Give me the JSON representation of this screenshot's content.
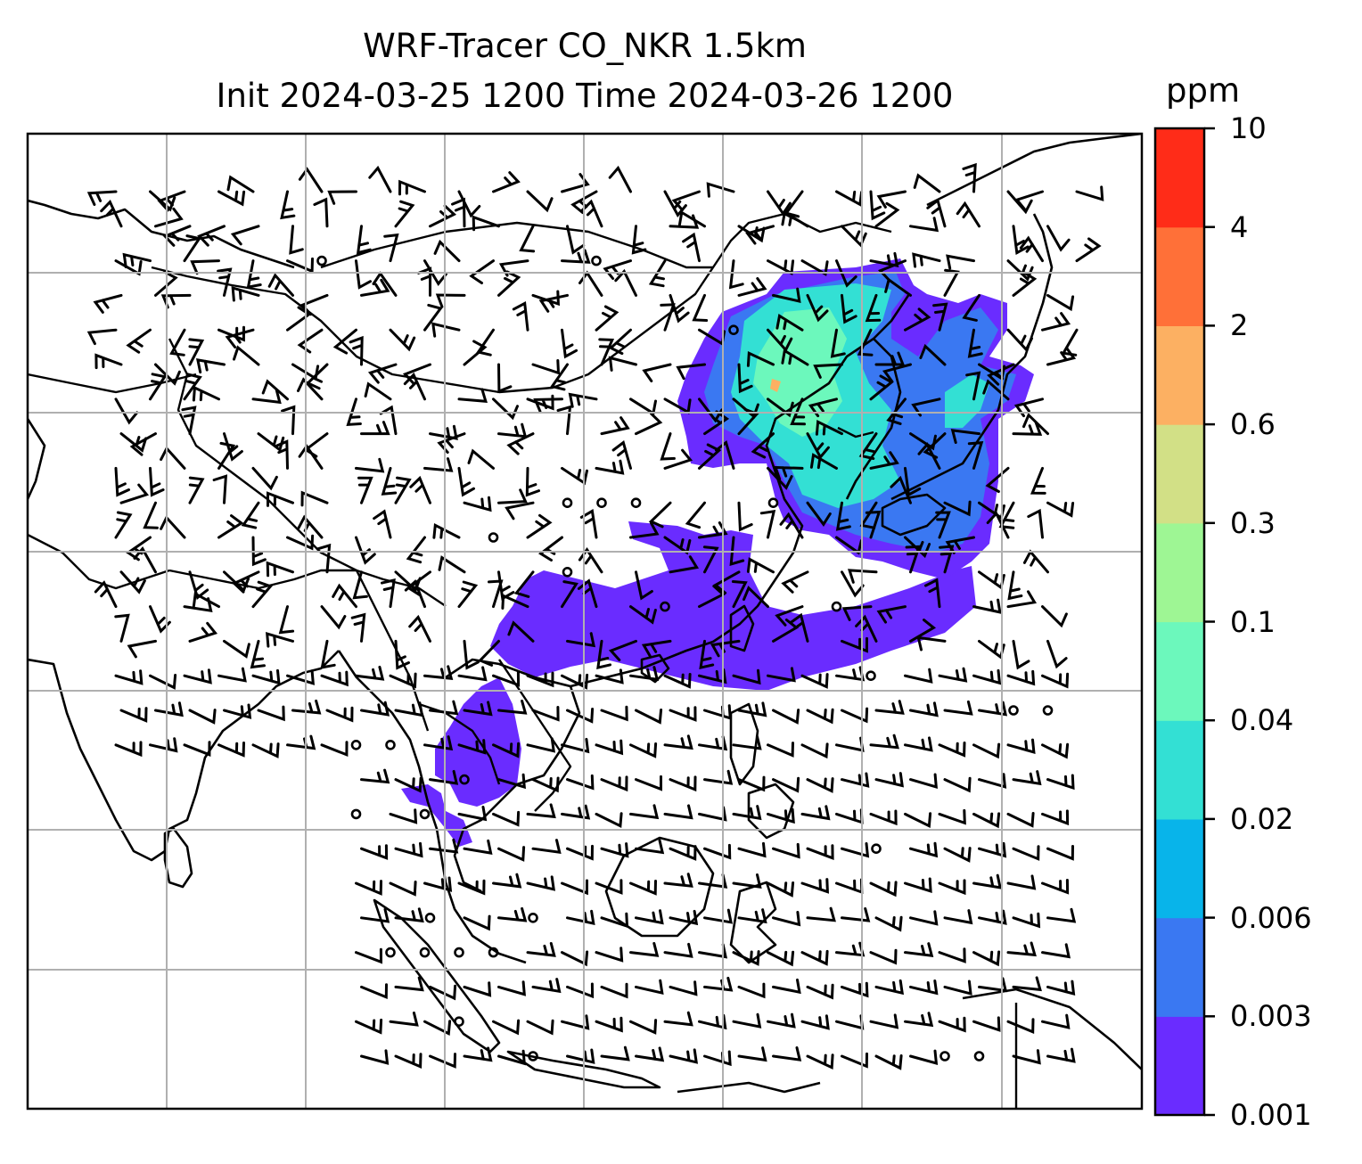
{
  "title": {
    "line1": "WRF-Tracer CO_NKR 1.5km",
    "line2": "Init 2024-03-25 1200 Time 2024-03-26 1200"
  },
  "colorbar": {
    "unit": "ppm",
    "levels": [
      "0.001",
      "0.003",
      "0.006",
      "0.02",
      "0.04",
      "0.1",
      "0.3",
      "0.6",
      "2",
      "4",
      "10"
    ],
    "colors": [
      "#6a2cff",
      "#3a78f2",
      "#08b4ea",
      "#33e0d4",
      "#6cf8bc",
      "#9ef694",
      "#d2e086",
      "#fcb062",
      "#ff7038",
      "#ff2c18"
    ]
  },
  "map": {
    "gridlines": true,
    "features": [
      "coastlines",
      "country-borders",
      "co-tracer-concentration",
      "wind-barbs"
    ],
    "plume_colors": {
      "low": "#6a2cff",
      "mid": "#3a78f2",
      "cyan": "#33e0d4",
      "green": "#6cf8bc",
      "peak": "#fcb062"
    }
  }
}
